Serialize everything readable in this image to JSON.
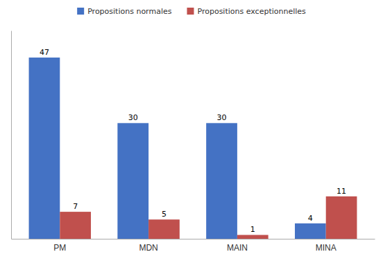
{
  "chart_data": {
    "type": "bar",
    "categories": [
      "PM",
      "MDN",
      "MAIN",
      "MINA"
    ],
    "series": [
      {
        "name": "Propositions normales",
        "color": "#4472C4",
        "values": [
          47,
          30,
          30,
          4
        ]
      },
      {
        "name": "Propositions exceptionnelles",
        "color": "#C0504D",
        "values": [
          7,
          5,
          1,
          11
        ]
      }
    ],
    "ylim": [
      0,
      54
    ],
    "yticks": [],
    "grid": false,
    "legend": "top",
    "data_labels": true,
    "tick_labels": "x"
  }
}
